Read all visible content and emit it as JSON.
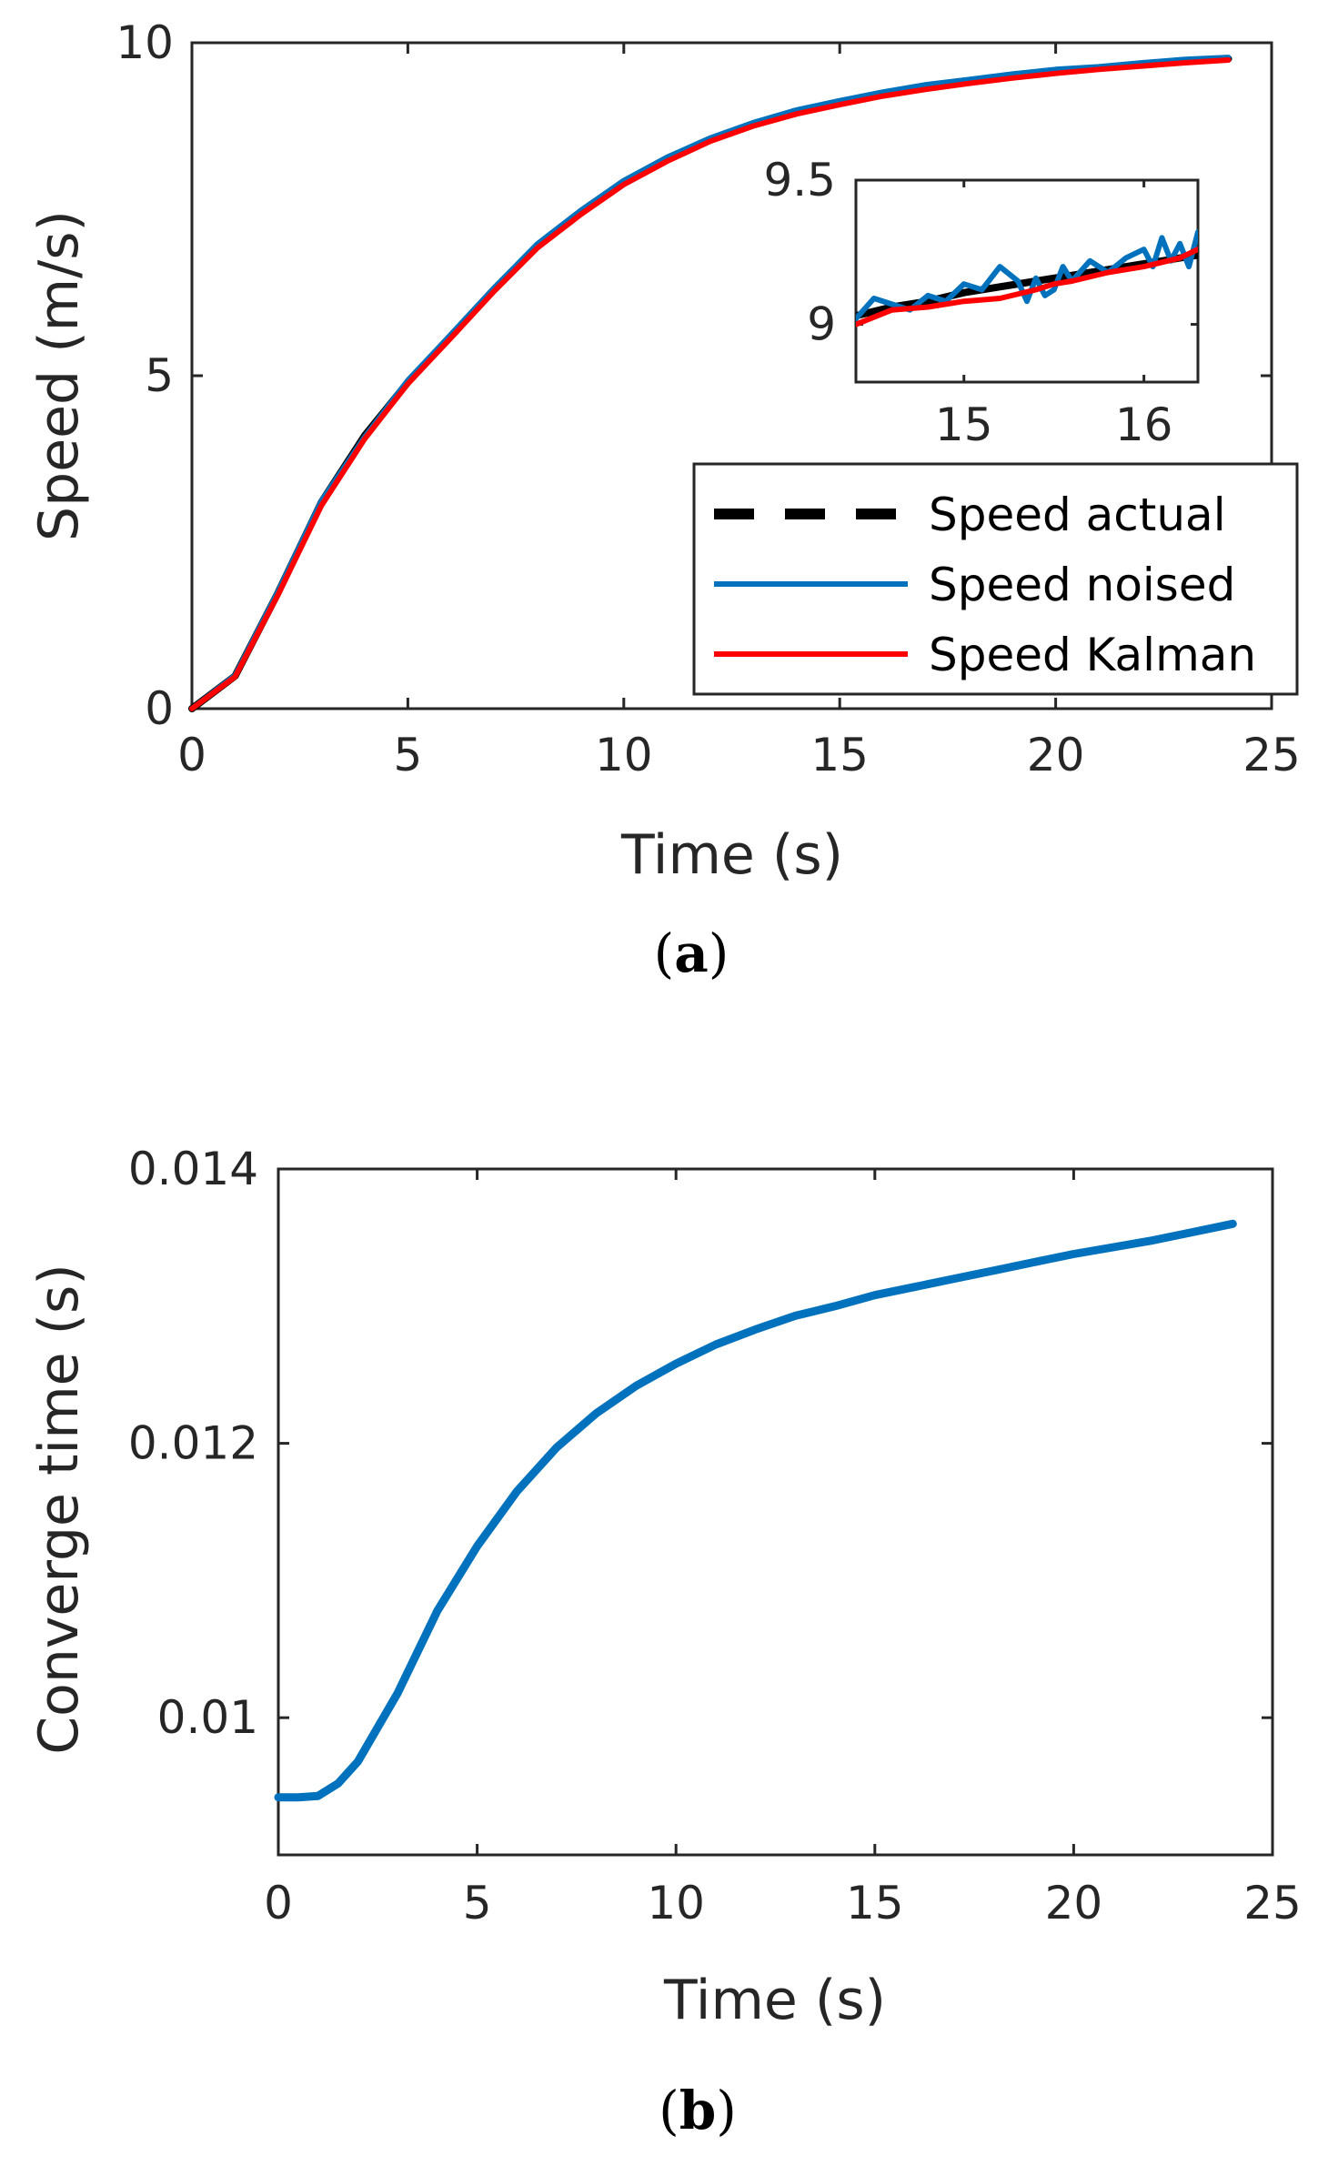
{
  "colors": {
    "actual": "#000000",
    "noised": "#0072BD",
    "kalman": "#FF0000",
    "axis": "#262626"
  },
  "chart_data": [
    {
      "id": "a",
      "type": "line",
      "panel_label": {
        "open": "(",
        "letter": "a",
        "close": ")"
      },
      "xlabel": "Time (s)",
      "ylabel": "Speed (m/s)",
      "xlim": [
        0,
        25
      ],
      "ylim": [
        0,
        10
      ],
      "xticks": [
        0,
        5,
        10,
        15,
        20,
        25
      ],
      "xtick_labels": [
        "0",
        "5",
        "10",
        "15",
        "20",
        "25"
      ],
      "yticks": [
        0,
        5,
        10
      ],
      "ytick_labels": [
        "0",
        "5",
        "10"
      ],
      "legend_position": "bottom-right",
      "series": [
        {
          "name": "Speed actual",
          "style": "dashed",
          "color_key": "actual",
          "x": [
            0,
            1,
            2,
            3,
            4,
            5,
            6,
            7,
            8,
            9,
            10,
            11,
            12,
            13,
            14,
            15,
            16,
            17,
            18,
            19,
            20,
            21,
            22,
            23,
            24
          ],
          "y": [
            0,
            0.49,
            1.75,
            3.1,
            4.1,
            4.9,
            5.6,
            6.3,
            6.95,
            7.45,
            7.9,
            8.25,
            8.55,
            8.78,
            8.97,
            9.11,
            9.23,
            9.34,
            9.43,
            9.5,
            9.57,
            9.62,
            9.67,
            9.72,
            9.76
          ]
        },
        {
          "name": "Speed noised",
          "style": "solid",
          "color_key": "noised",
          "x": [
            0,
            1,
            2,
            3,
            4,
            5,
            6,
            7,
            8,
            9,
            10,
            11,
            12,
            13,
            14,
            15,
            16,
            17,
            18,
            19,
            20,
            21,
            22,
            23,
            24
          ],
          "y": [
            0,
            0.5,
            1.77,
            3.12,
            4.08,
            4.93,
            5.62,
            6.32,
            6.98,
            7.48,
            7.93,
            8.28,
            8.57,
            8.8,
            8.99,
            9.13,
            9.26,
            9.37,
            9.45,
            9.53,
            9.6,
            9.64,
            9.7,
            9.75,
            9.78
          ]
        },
        {
          "name": "Speed Kalman",
          "style": "solid",
          "color_key": "kalman",
          "x": [
            0,
            1,
            2,
            3,
            4,
            5,
            6,
            7,
            8,
            9,
            10,
            11,
            12,
            13,
            14,
            15,
            16,
            17,
            18,
            19,
            20,
            21,
            22,
            23,
            24
          ],
          "y": [
            0,
            0.48,
            1.72,
            3.05,
            4.05,
            4.88,
            5.57,
            6.27,
            6.92,
            7.42,
            7.87,
            8.22,
            8.52,
            8.75,
            8.93,
            9.07,
            9.2,
            9.3,
            9.39,
            9.47,
            9.54,
            9.6,
            9.65,
            9.7,
            9.74
          ]
        }
      ],
      "inset": {
        "xlim": [
          14.4,
          16.3
        ],
        "ylim": [
          8.8,
          9.5
        ],
        "xticks": [
          15,
          16
        ],
        "xtick_labels": [
          "15",
          "16"
        ],
        "yticks": [
          9,
          9.5
        ],
        "ytick_labels": [
          "9",
          "9.5"
        ],
        "series": [
          {
            "name": "Speed actual",
            "color_key": "actual",
            "x": [
              14.4,
              14.6,
              14.8,
              15.0,
              15.2,
              15.4,
              15.6,
              15.8,
              16.0,
              16.2,
              16.3
            ],
            "y": [
              9.03,
              9.06,
              9.08,
              9.11,
              9.13,
              9.15,
              9.17,
              9.19,
              9.21,
              9.23,
              9.24
            ]
          },
          {
            "name": "Speed noised",
            "color_key": "noised",
            "x": [
              14.4,
              14.5,
              14.6,
              14.7,
              14.8,
              14.9,
              15.0,
              15.1,
              15.2,
              15.3,
              15.35,
              15.4,
              15.45,
              15.5,
              15.55,
              15.6,
              15.7,
              15.8,
              15.9,
              16.0,
              16.05,
              16.1,
              16.15,
              16.2,
              16.25,
              16.3
            ],
            "y": [
              9.02,
              9.09,
              9.07,
              9.05,
              9.1,
              9.08,
              9.14,
              9.12,
              9.2,
              9.15,
              9.08,
              9.16,
              9.1,
              9.12,
              9.2,
              9.15,
              9.22,
              9.18,
              9.23,
              9.26,
              9.2,
              9.3,
              9.22,
              9.28,
              9.2,
              9.32
            ]
          },
          {
            "name": "Speed Kalman",
            "color_key": "kalman",
            "x": [
              14.4,
              14.6,
              14.8,
              15.0,
              15.2,
              15.4,
              15.5,
              15.6,
              15.8,
              16.0,
              16.2,
              16.3
            ],
            "y": [
              9.0,
              9.05,
              9.06,
              9.08,
              9.09,
              9.12,
              9.14,
              9.15,
              9.18,
              9.2,
              9.23,
              9.26
            ]
          }
        ]
      }
    },
    {
      "id": "b",
      "type": "line",
      "panel_label": {
        "open": "(",
        "letter": "b",
        "close": ")"
      },
      "xlabel": "Time (s)",
      "ylabel": "Converge time (s)",
      "xlim": [
        0,
        25
      ],
      "ylim": [
        0.009,
        0.014
      ],
      "xticks": [
        0,
        5,
        10,
        15,
        20,
        25
      ],
      "xtick_labels": [
        "0",
        "5",
        "10",
        "15",
        "20",
        "25"
      ],
      "yticks": [
        0.01,
        0.012,
        0.014
      ],
      "ytick_labels": [
        "0.01",
        "0.012",
        "0.014"
      ],
      "series": [
        {
          "name": "Converge time",
          "style": "solid",
          "color_key": "noised",
          "x": [
            0,
            0.5,
            1.0,
            1.5,
            2,
            3,
            4,
            5,
            6,
            7,
            8,
            9,
            10,
            11,
            12,
            13,
            14,
            15,
            16,
            17,
            18,
            19,
            20,
            21,
            22,
            23,
            24
          ],
          "y": [
            0.00942,
            0.00942,
            0.00943,
            0.00952,
            0.00968,
            0.01018,
            0.01078,
            0.01125,
            0.01165,
            0.01197,
            0.01222,
            0.01242,
            0.01258,
            0.01272,
            0.01283,
            0.01293,
            0.013,
            0.01308,
            0.01314,
            0.0132,
            0.01326,
            0.01332,
            0.01338,
            0.01343,
            0.01348,
            0.01354,
            0.0136
          ]
        }
      ]
    }
  ]
}
